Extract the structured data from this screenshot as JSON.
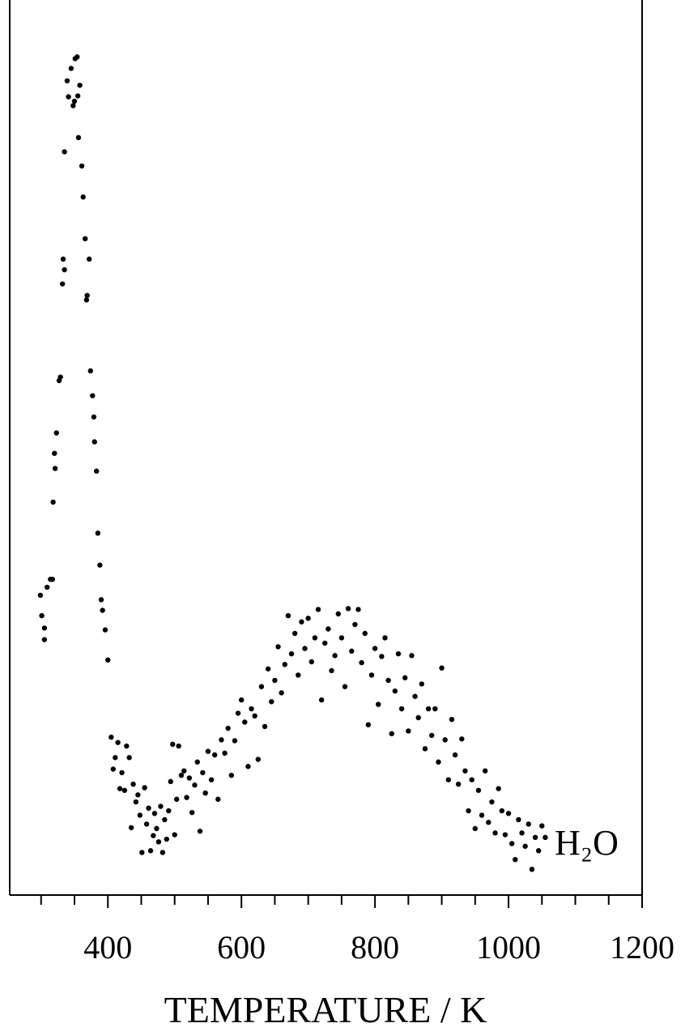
{
  "chart_data": {
    "type": "scatter",
    "x_label": "TEMPERATURE / K",
    "annotation": "H₂O",
    "color": "#000000",
    "xlim": [
      253,
      1200
    ],
    "ylim": [
      0,
      100
    ],
    "xticks": [
      400,
      600,
      800,
      1000,
      1200
    ],
    "xminorticks": [
      300,
      350,
      450,
      500,
      550,
      650,
      700,
      750,
      850,
      900,
      950,
      1050,
      1100,
      1150
    ],
    "x": [
      299,
      301,
      305,
      305,
      309,
      314,
      317,
      318,
      320,
      321,
      323,
      327,
      329,
      332,
      333,
      335,
      335,
      339,
      341,
      345,
      348,
      350,
      351,
      354,
      355,
      356,
      358,
      361,
      363,
      366,
      368,
      369,
      372,
      374,
      377,
      379,
      380,
      383,
      385,
      388,
      390,
      392,
      396,
      400,
      405,
      408,
      411,
      415,
      418,
      421,
      425,
      428,
      432,
      435,
      438,
      442,
      445,
      448,
      451,
      455,
      458,
      461,
      464,
      468,
      470,
      473,
      476,
      479,
      482,
      485,
      488,
      491,
      494,
      497,
      500,
      503,
      506,
      510,
      514,
      518,
      522,
      526,
      530,
      534,
      538,
      542,
      546,
      550,
      555,
      560,
      565,
      570,
      575,
      580,
      585,
      590,
      595,
      600,
      605,
      610,
      615,
      620,
      625,
      630,
      635,
      640,
      645,
      650,
      655,
      660,
      665,
      670,
      675,
      680,
      685,
      690,
      695,
      700,
      705,
      710,
      715,
      720,
      725,
      730,
      735,
      740,
      745,
      750,
      755,
      760,
      765,
      770,
      775,
      780,
      785,
      790,
      795,
      800,
      805,
      810,
      815,
      820,
      825,
      830,
      835,
      840,
      845,
      850,
      855,
      860,
      865,
      870,
      875,
      880,
      885,
      890,
      895,
      900,
      905,
      910,
      915,
      920,
      925,
      930,
      935,
      940,
      945,
      950,
      955,
      960,
      965,
      970,
      975,
      980,
      985,
      990,
      995,
      1000,
      1005,
      1010,
      1015,
      1020,
      1025,
      1030,
      1035,
      1040,
      1045,
      1050,
      1055
    ],
    "values": [
      33.8,
      31.5,
      30.1,
      28.8,
      34.7,
      35.6,
      35.6,
      44.3,
      49.8,
      48.1,
      52.1,
      58.0,
      58.4,
      68.9,
      71.7,
      70.5,
      83.8,
      91.8,
      90.0,
      93.2,
      89.0,
      89.5,
      94.3,
      94.5,
      90.1,
      85.4,
      91.3,
      82.2,
      78.7,
      74.0,
      67.1,
      67.6,
      71.7,
      59.1,
      56.3,
      53.9,
      51.1,
      47.8,
      40.8,
      37.2,
      33.3,
      32.1,
      29.9,
      26.5,
      17.8,
      14.2,
      15.5,
      17.2,
      12.0,
      13.8,
      11.8,
      16.8,
      15.5,
      7.6,
      12.5,
      10.5,
      11.3,
      9.0,
      4.8,
      12.1,
      8.0,
      9.8,
      5.0,
      6.7,
      9.2,
      7.5,
      6.0,
      10.0,
      4.8,
      8.5,
      6.3,
      9.5,
      12.8,
      17.0,
      6.8,
      10.8,
      16.8,
      13.5,
      14.0,
      11.0,
      13.2,
      9.3,
      12.4,
      15.0,
      7.2,
      13.8,
      11.5,
      16.2,
      13.0,
      15.8,
      10.8,
      17.5,
      16.0,
      18.8,
      13.5,
      17.4,
      20.5,
      22.0,
      19.5,
      14.5,
      21.0,
      20.2,
      15.3,
      23.5,
      19.0,
      25.5,
      21.8,
      24.2,
      28.0,
      22.8,
      26.0,
      31.5,
      27.2,
      29.5,
      24.8,
      30.8,
      27.8,
      31.2,
      26.3,
      29.0,
      32.2,
      22.0,
      28.4,
      30.0,
      25.3,
      27.0,
      31.7,
      29.0,
      23.5,
      32.3,
      27.5,
      30.5,
      32.2,
      26.2,
      29.5,
      19.2,
      24.8,
      27.8,
      21.5,
      26.9,
      29.0,
      24.2,
      18.2,
      23.0,
      27.2,
      21.0,
      24.5,
      18.5,
      27.0,
      22.4,
      20.0,
      23.8,
      16.5,
      21.0,
      18.0,
      21.0,
      15.0,
      25.6,
      17.5,
      13.0,
      19.8,
      15.8,
      12.5,
      17.6,
      14.0,
      9.5,
      13.0,
      7.5,
      11.8,
      9.0,
      14.0,
      8.2,
      10.5,
      7.0,
      12.0,
      9.5,
      6.8,
      9.2,
      5.8,
      4.0,
      8.5,
      7.0,
      5.5,
      8.0,
      2.9,
      6.5,
      5.0,
      7.8,
      6.5
    ]
  }
}
